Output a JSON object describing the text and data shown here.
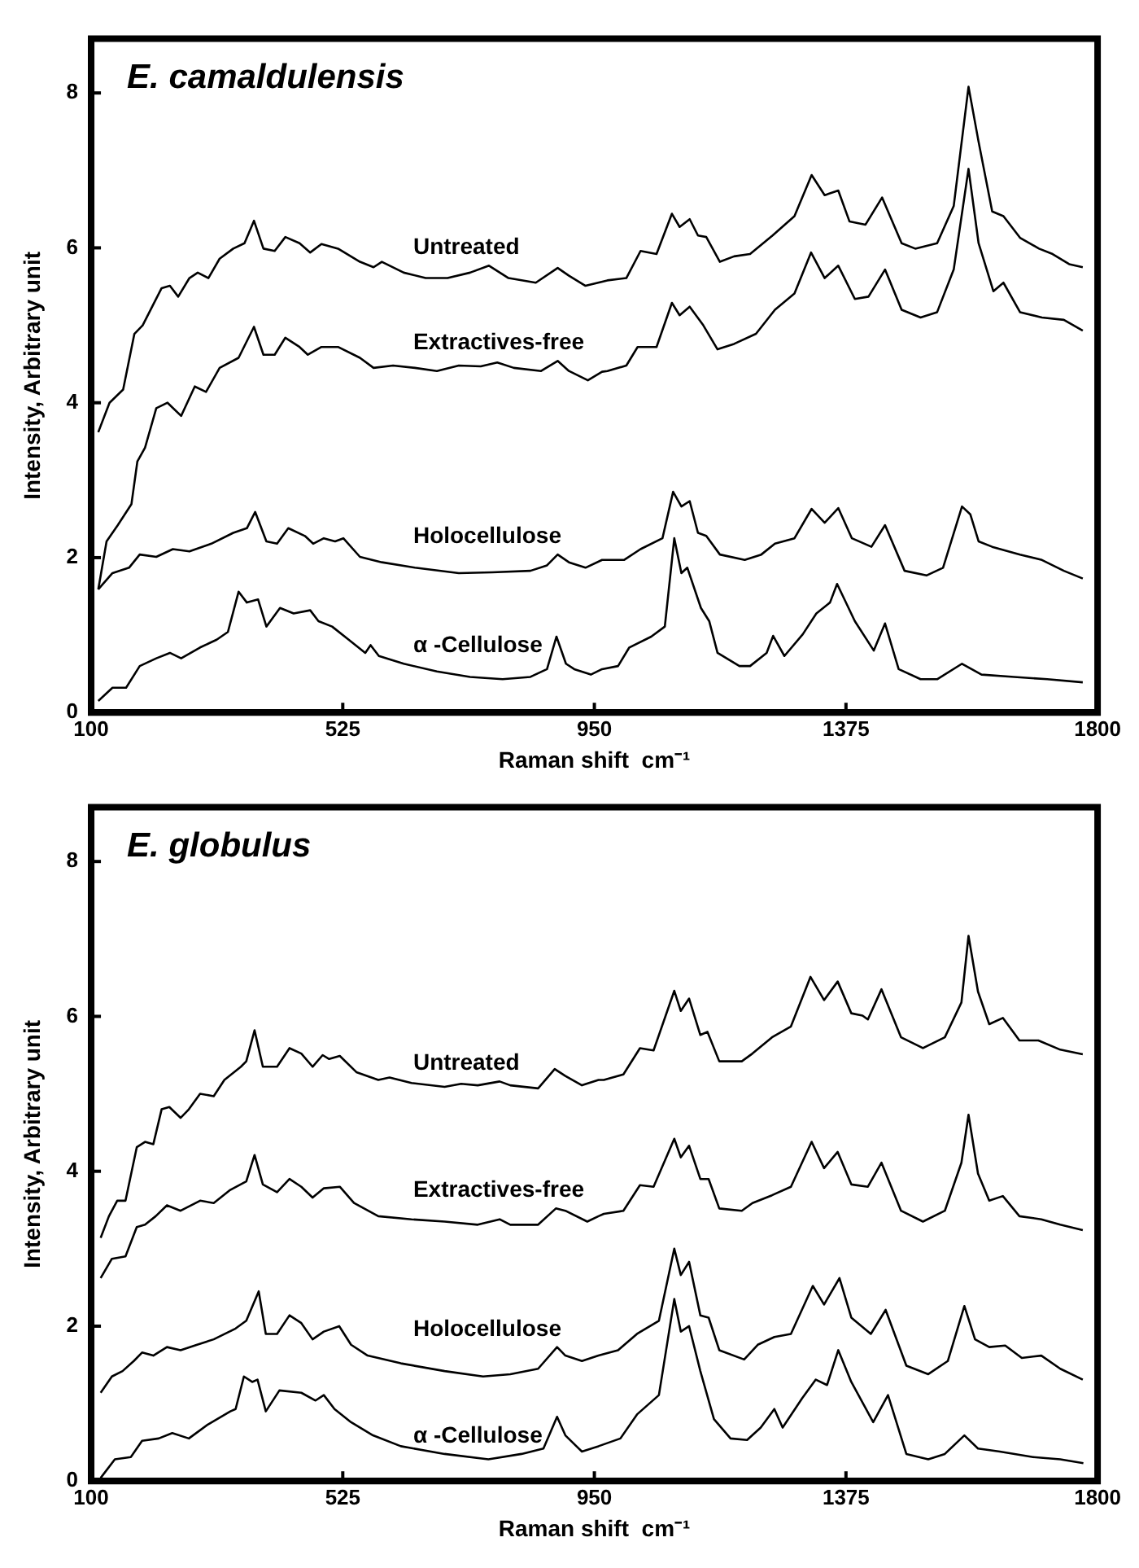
{
  "chart_data": [
    {
      "type": "line",
      "title": "E. camaldulensis",
      "xlabel": "Raman shift  cm⁻¹",
      "ylabel": "Intensity, Arbitrary unit",
      "xlim": [
        100,
        1800
      ],
      "xticks": [
        100,
        525,
        950,
        1375,
        1800
      ],
      "ylim": [
        0,
        8.7
      ],
      "yticks": [
        0,
        2,
        4,
        6,
        8
      ],
      "series": [
        {
          "name": "Untreated",
          "color": "#000000",
          "x": [
            112,
            131,
            154,
            173,
            187,
            219,
            233,
            247,
            266,
            280,
            298,
            317,
            340,
            359,
            375,
            391,
            410,
            428,
            452,
            470,
            489,
            517,
            554,
            577,
            591,
            628,
            665,
            702,
            740,
            772,
            805,
            851,
            888,
            907,
            935,
            972,
            1004,
            1028,
            1055,
            1081,
            1094,
            1111,
            1125,
            1139,
            1162,
            1186,
            1213,
            1251,
            1288,
            1317,
            1339,
            1362,
            1381,
            1408,
            1436,
            1469,
            1492,
            1529,
            1557,
            1582,
            1599,
            1622,
            1641,
            1669,
            1701,
            1724,
            1752,
            1775
          ],
          "values": [
            3.62,
            4.0,
            4.17,
            4.89,
            5.0,
            5.48,
            5.51,
            5.37,
            5.61,
            5.68,
            5.61,
            5.86,
            5.99,
            6.06,
            6.35,
            5.99,
            5.96,
            6.14,
            6.06,
            5.94,
            6.05,
            5.99,
            5.82,
            5.75,
            5.82,
            5.68,
            5.61,
            5.61,
            5.68,
            5.77,
            5.61,
            5.55,
            5.74,
            5.64,
            5.51,
            5.58,
            5.61,
            5.96,
            5.92,
            6.44,
            6.27,
            6.37,
            6.16,
            6.14,
            5.82,
            5.89,
            5.92,
            6.16,
            6.41,
            6.94,
            6.68,
            6.74,
            6.34,
            6.3,
            6.65,
            6.06,
            5.99,
            6.06,
            6.54,
            8.08,
            7.37,
            6.47,
            6.41,
            6.13,
            5.99,
            5.92,
            5.79,
            5.75
          ]
        },
        {
          "name": "Extractives-free",
          "color": "#000000",
          "x": [
            112,
            126,
            145,
            168,
            178,
            191,
            210,
            229,
            252,
            275,
            294,
            317,
            349,
            375,
            391,
            410,
            428,
            452,
            466,
            489,
            517,
            554,
            577,
            610,
            647,
            684,
            721,
            758,
            786,
            814,
            860,
            888,
            907,
            939,
            963,
            972,
            1004,
            1023,
            1055,
            1081,
            1094,
            1111,
            1134,
            1158,
            1186,
            1223,
            1255,
            1288,
            1316,
            1339,
            1362,
            1390,
            1413,
            1441,
            1469,
            1501,
            1529,
            1557,
            1582,
            1599,
            1624,
            1641,
            1669,
            1706,
            1743,
            1775
          ],
          "values": [
            1.59,
            2.21,
            2.42,
            2.69,
            3.24,
            3.42,
            3.93,
            4.0,
            3.83,
            4.21,
            4.14,
            4.45,
            4.58,
            4.98,
            4.62,
            4.62,
            4.84,
            4.72,
            4.62,
            4.72,
            4.72,
            4.58,
            4.45,
            4.48,
            4.45,
            4.41,
            4.48,
            4.47,
            4.52,
            4.45,
            4.41,
            4.54,
            4.41,
            4.29,
            4.4,
            4.41,
            4.48,
            4.72,
            4.72,
            5.29,
            5.13,
            5.24,
            5.0,
            4.69,
            4.76,
            4.89,
            5.2,
            5.41,
            5.94,
            5.61,
            5.77,
            5.34,
            5.37,
            5.72,
            5.2,
            5.1,
            5.17,
            5.72,
            7.02,
            6.06,
            5.44,
            5.55,
            5.17,
            5.1,
            5.07,
            4.93
          ]
        },
        {
          "name": "Holocellulose",
          "color": "#000000",
          "x": [
            112,
            136,
            164,
            182,
            210,
            238,
            266,
            303,
            340,
            363,
            377,
            396,
            414,
            433,
            461,
            475,
            493,
            512,
            526,
            554,
            591,
            647,
            721,
            777,
            842,
            870,
            888,
            907,
            935,
            963,
            972,
            1000,
            1028,
            1065,
            1083,
            1097,
            1111,
            1125,
            1139,
            1162,
            1204,
            1232,
            1255,
            1288,
            1317,
            1339,
            1362,
            1385,
            1418,
            1441,
            1474,
            1511,
            1539,
            1571,
            1585,
            1599,
            1622,
            1669,
            1706,
            1743,
            1775
          ],
          "values": [
            1.59,
            1.8,
            1.87,
            2.04,
            2.01,
            2.11,
            2.08,
            2.18,
            2.32,
            2.38,
            2.59,
            2.21,
            2.18,
            2.38,
            2.28,
            2.18,
            2.25,
            2.21,
            2.25,
            2.01,
            1.94,
            1.87,
            1.8,
            1.81,
            1.83,
            1.9,
            2.04,
            1.94,
            1.87,
            1.97,
            1.97,
            1.97,
            2.11,
            2.25,
            2.85,
            2.66,
            2.73,
            2.32,
            2.28,
            2.04,
            1.97,
            2.04,
            2.18,
            2.25,
            2.63,
            2.45,
            2.64,
            2.25,
            2.14,
            2.42,
            1.83,
            1.77,
            1.87,
            2.66,
            2.56,
            2.21,
            2.14,
            2.04,
            1.97,
            1.83,
            1.73
          ]
        },
        {
          "name": "α -Cellulose",
          "color": "#000000",
          "x": [
            112,
            136,
            159,
            182,
            210,
            233,
            252,
            284,
            312,
            331,
            349,
            363,
            382,
            396,
            419,
            442,
            470,
            484,
            507,
            535,
            563,
            572,
            586,
            628,
            684,
            740,
            795,
            842,
            870,
            886,
            902,
            916,
            944,
            963,
            990,
            1009,
            1046,
            1069,
            1085,
            1097,
            1107,
            1130,
            1144,
            1158,
            1195,
            1213,
            1241,
            1252,
            1271,
            1302,
            1325,
            1348,
            1360,
            1390,
            1422,
            1441,
            1464,
            1501,
            1529,
            1571,
            1604,
            1659,
            1715,
            1775
          ],
          "values": [
            0.15,
            0.32,
            0.32,
            0.6,
            0.7,
            0.77,
            0.7,
            0.84,
            0.94,
            1.04,
            1.56,
            1.42,
            1.46,
            1.11,
            1.35,
            1.28,
            1.32,
            1.18,
            1.11,
            0.94,
            0.77,
            0.87,
            0.73,
            0.63,
            0.53,
            0.46,
            0.43,
            0.46,
            0.56,
            0.98,
            0.63,
            0.56,
            0.49,
            0.56,
            0.6,
            0.84,
            0.98,
            1.11,
            2.25,
            1.8,
            1.87,
            1.35,
            1.18,
            0.77,
            0.6,
            0.6,
            0.77,
            0.99,
            0.73,
            1.01,
            1.28,
            1.42,
            1.66,
            1.18,
            0.8,
            1.15,
            0.56,
            0.43,
            0.43,
            0.63,
            0.49,
            0.46,
            0.43,
            0.39
          ]
        }
      ]
    },
    {
      "type": "line",
      "title": "E. globulus",
      "xlabel": "Raman shift  cm⁻¹",
      "ylabel": "Intensity, Arbitrary unit",
      "xlim": [
        100,
        1800
      ],
      "xticks": [
        100,
        525,
        950,
        1375,
        1800
      ],
      "ylim": [
        0,
        8.7
      ],
      "yticks": [
        0,
        2,
        4,
        6,
        8
      ],
      "series": [
        {
          "name": "Untreated",
          "color": "#000000",
          "x": [
            116,
            130,
            144,
            158,
            177,
            191,
            205,
            219,
            232,
            251,
            265,
            284,
            307,
            325,
            353,
            362,
            376,
            390,
            414,
            435,
            455,
            474,
            491,
            502,
            520,
            548,
            585,
            604,
            641,
            697,
            725,
            753,
            790,
            808,
            855,
            883,
            901,
            929,
            957,
            966,
            999,
            1027,
            1050,
            1085,
            1096,
            1110,
            1129,
            1141,
            1161,
            1199,
            1217,
            1250,
            1282,
            1315,
            1338,
            1361,
            1384,
            1403,
            1412,
            1435,
            1468,
            1505,
            1542,
            1570,
            1582,
            1598,
            1617,
            1640,
            1668,
            1700,
            1737,
            1775
          ],
          "values": [
            3.14,
            3.42,
            3.62,
            3.62,
            4.31,
            4.38,
            4.35,
            4.8,
            4.83,
            4.69,
            4.8,
            5.0,
            4.97,
            5.18,
            5.35,
            5.42,
            5.82,
            5.35,
            5.35,
            5.59,
            5.52,
            5.35,
            5.5,
            5.45,
            5.49,
            5.28,
            5.18,
            5.21,
            5.14,
            5.09,
            5.13,
            5.11,
            5.16,
            5.11,
            5.07,
            5.32,
            5.23,
            5.11,
            5.18,
            5.18,
            5.25,
            5.59,
            5.56,
            6.33,
            6.07,
            6.23,
            5.76,
            5.8,
            5.42,
            5.42,
            5.52,
            5.73,
            5.87,
            6.51,
            6.21,
            6.45,
            6.04,
            6.01,
            5.96,
            6.35,
            5.73,
            5.59,
            5.73,
            6.18,
            7.04,
            6.32,
            5.9,
            5.98,
            5.69,
            5.69,
            5.57,
            5.51
          ]
        },
        {
          "name": "Extractives-free",
          "color": "#000000",
          "x": [
            116,
            135,
            158,
            177,
            191,
            209,
            228,
            251,
            284,
            307,
            335,
            362,
            376,
            390,
            414,
            435,
            455,
            474,
            493,
            520,
            544,
            585,
            641,
            697,
            753,
            790,
            808,
            855,
            885,
            901,
            938,
            957,
            966,
            999,
            1027,
            1050,
            1085,
            1096,
            1110,
            1129,
            1143,
            1161,
            1199,
            1217,
            1250,
            1282,
            1317,
            1338,
            1361,
            1384,
            1412,
            1435,
            1468,
            1505,
            1542,
            1570,
            1582,
            1598,
            1617,
            1640,
            1668,
            1705,
            1737,
            1775
          ],
          "values": [
            2.62,
            2.87,
            2.9,
            3.28,
            3.31,
            3.42,
            3.56,
            3.49,
            3.62,
            3.59,
            3.76,
            3.87,
            4.21,
            3.83,
            3.73,
            3.9,
            3.8,
            3.66,
            3.78,
            3.8,
            3.59,
            3.42,
            3.38,
            3.35,
            3.31,
            3.38,
            3.31,
            3.31,
            3.52,
            3.49,
            3.35,
            3.42,
            3.45,
            3.49,
            3.82,
            3.8,
            4.42,
            4.18,
            4.33,
            3.9,
            3.9,
            3.52,
            3.49,
            3.59,
            3.69,
            3.8,
            4.38,
            4.04,
            4.25,
            3.83,
            3.8,
            4.11,
            3.49,
            3.35,
            3.49,
            4.11,
            4.73,
            3.97,
            3.62,
            3.68,
            3.42,
            3.38,
            3.31,
            3.24
          ]
        },
        {
          "name": "Holocellulose",
          "color": "#000000",
          "x": [
            116,
            135,
            153,
            172,
            186,
            205,
            228,
            251,
            279,
            307,
            344,
            362,
            383,
            395,
            414,
            435,
            455,
            474,
            493,
            519,
            539,
            567,
            623,
            697,
            762,
            808,
            855,
            887,
            901,
            929,
            957,
            990,
            1022,
            1059,
            1085,
            1096,
            1110,
            1129,
            1143,
            1161,
            1203,
            1226,
            1254,
            1282,
            1319,
            1338,
            1364,
            1384,
            1417,
            1442,
            1477,
            1514,
            1547,
            1575,
            1593,
            1617,
            1644,
            1672,
            1705,
            1737,
            1775
          ],
          "values": [
            1.14,
            1.35,
            1.42,
            1.55,
            1.66,
            1.62,
            1.73,
            1.69,
            1.76,
            1.83,
            1.97,
            2.07,
            2.45,
            1.9,
            1.9,
            2.14,
            2.04,
            1.83,
            1.93,
            2.0,
            1.76,
            1.62,
            1.52,
            1.42,
            1.35,
            1.38,
            1.45,
            1.73,
            1.62,
            1.55,
            1.62,
            1.69,
            1.9,
            2.07,
            3.0,
            2.66,
            2.83,
            2.14,
            2.11,
            1.69,
            1.57,
            1.76,
            1.86,
            1.9,
            2.52,
            2.28,
            2.62,
            2.11,
            1.9,
            2.21,
            1.49,
            1.38,
            1.55,
            2.26,
            1.83,
            1.73,
            1.75,
            1.59,
            1.62,
            1.45,
            1.31
          ]
        },
        {
          "name": "α -Cellulose",
          "color": "#000000",
          "x": [
            116,
            140,
            167,
            186,
            214,
            237,
            265,
            297,
            335,
            344,
            358,
            372,
            381,
            395,
            418,
            455,
            479,
            493,
            511,
            539,
            576,
            623,
            697,
            771,
            827,
            864,
            887,
            901,
            929,
            957,
            994,
            1022,
            1059,
            1085,
            1096,
            1110,
            1129,
            1152,
            1180,
            1208,
            1231,
            1254,
            1268,
            1301,
            1324,
            1343,
            1362,
            1384,
            1421,
            1446,
            1477,
            1514,
            1542,
            1575,
            1598,
            1635,
            1691,
            1737,
            1776
          ],
          "values": [
            0.04,
            0.28,
            0.31,
            0.52,
            0.55,
            0.62,
            0.55,
            0.73,
            0.9,
            0.93,
            1.35,
            1.28,
            1.31,
            0.9,
            1.17,
            1.14,
            1.04,
            1.11,
            0.93,
            0.76,
            0.59,
            0.45,
            0.35,
            0.28,
            0.35,
            0.42,
            0.83,
            0.59,
            0.38,
            0.45,
            0.55,
            0.86,
            1.11,
            2.35,
            1.93,
            2.0,
            1.42,
            0.8,
            0.55,
            0.53,
            0.69,
            0.93,
            0.69,
            1.07,
            1.31,
            1.24,
            1.69,
            1.28,
            0.76,
            1.11,
            0.35,
            0.28,
            0.35,
            0.59,
            0.42,
            0.38,
            0.31,
            0.28,
            0.23
          ]
        }
      ]
    }
  ]
}
